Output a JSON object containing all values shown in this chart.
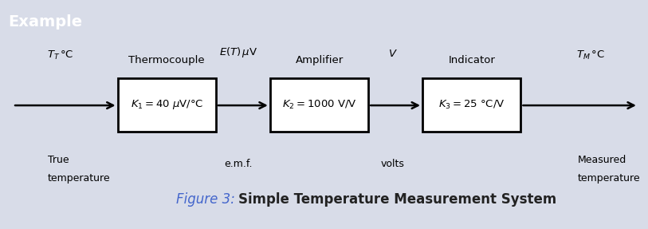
{
  "title_bar_text": "Example",
  "title_bar_bg": "#2B2EA0",
  "title_bar_text_color": "#FFFFFF",
  "main_bg": "#FFFFFF",
  "outer_bg": "#D8DCE8",
  "figure_caption": "Figure 3:",
  "figure_caption_color": "#4466CC",
  "figure_title": "Simple Temperature Measurement System",
  "figure_title_color": "#222222",
  "box1_label": "Thermocouple",
  "box1_content": "$K_1 = 40\\ \\mu$V/°C",
  "box2_label": "Amplifier",
  "box2_content": "$K_2 = 1000$ V/V",
  "box3_label": "Indicator",
  "box3_content": "$K_3 = 25$ °C/V",
  "sig0_main": "$T_T$°C",
  "sig0_sub1": "True",
  "sig0_sub2": "temperature",
  "sig1_main": "$E(T)$ μV",
  "sig1_sub": "e.m.f.",
  "sig2_main": "$V$",
  "sig2_sub": "volts",
  "sig3_main": "$T_M$°C",
  "sig3_sub1": "Measured",
  "sig3_sub2": "temperature"
}
